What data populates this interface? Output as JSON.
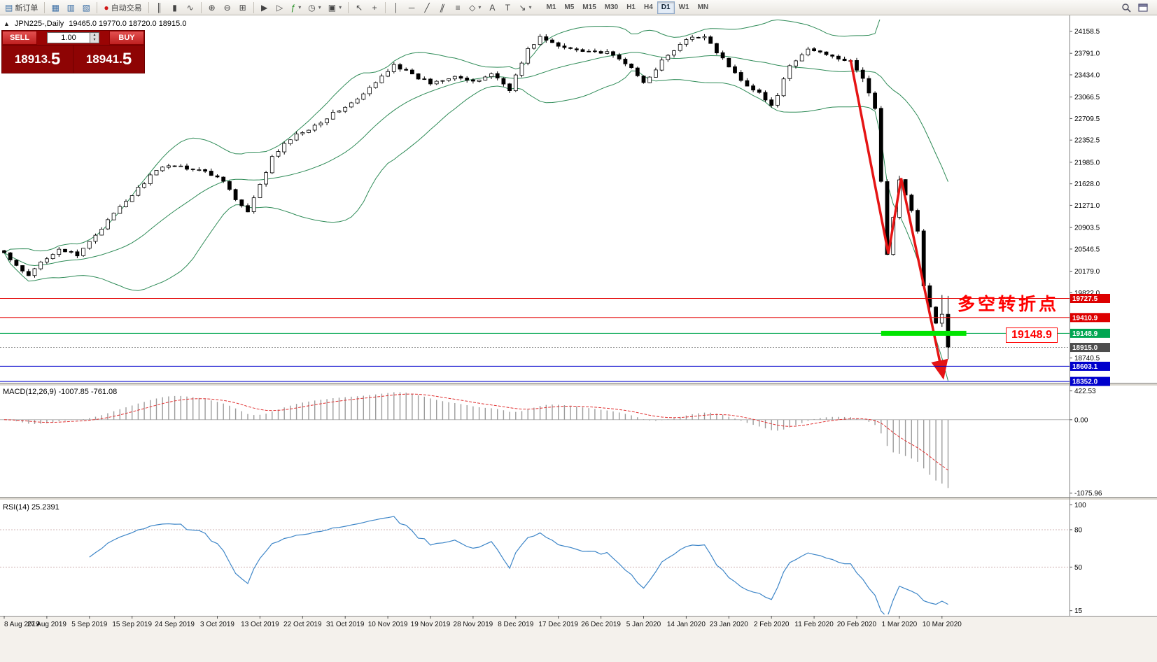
{
  "toolbar": {
    "groups": [
      {
        "name": "order-tools",
        "items": [
          {
            "name": "new-order-button",
            "glyph": "▤",
            "glyph_color": "#3a6ea5",
            "label": "新订单"
          }
        ]
      },
      {
        "name": "window-tools",
        "items": [
          {
            "name": "market-watch-button",
            "glyph": "▦",
            "glyph_color": "#3a6ea5"
          },
          {
            "name": "data-window-button",
            "glyph": "▥",
            "glyph_color": "#3a6ea5"
          },
          {
            "name": "terminal-button",
            "glyph": "▧",
            "glyph_color": "#3a6ea5"
          }
        ]
      },
      {
        "name": "autotrading",
        "items": [
          {
            "name": "auto-trading-button",
            "glyph": "●",
            "glyph_color": "#d01818",
            "label": "自动交易"
          }
        ]
      },
      {
        "name": "chart-type",
        "items": [
          {
            "name": "bar-chart-button",
            "glyph": "║"
          },
          {
            "name": "candlestick-chart-button",
            "glyph": "▮"
          },
          {
            "name": "line-chart-button",
            "glyph": "∿"
          }
        ]
      },
      {
        "name": "zoom",
        "items": [
          {
            "name": "zoom-in-button",
            "glyph": "⊕"
          },
          {
            "name": "zoom-out-button",
            "glyph": "⊖"
          },
          {
            "name": "tile-windows-button",
            "glyph": "⊞"
          }
        ]
      },
      {
        "name": "chart-tools",
        "items": [
          {
            "name": "auto-scroll-button",
            "glyph": "▶"
          },
          {
            "name": "chart-shift-button",
            "glyph": "▷"
          },
          {
            "name": "indicators-button",
            "glyph": "ƒ",
            "glyph_color": "#1a8a1a",
            "caret": true
          },
          {
            "name": "periods-button",
            "glyph": "◷",
            "caret": true
          },
          {
            "name": "templates-button",
            "glyph": "▣",
            "caret": true
          }
        ]
      },
      {
        "name": "pointer",
        "items": [
          {
            "name": "cursor-button",
            "glyph": "↖"
          },
          {
            "name": "crosshair-button",
            "glyph": "+"
          }
        ]
      },
      {
        "name": "draw-objects",
        "items": [
          {
            "name": "vertical-line-button",
            "glyph": "│"
          },
          {
            "name": "horizontal-line-button",
            "glyph": "─"
          },
          {
            "name": "trendline-button",
            "glyph": "╱"
          },
          {
            "name": "equidistant-channel-button",
            "glyph": "∥",
            "skew": true
          },
          {
            "name": "fibonacci-button",
            "glyph": "≡"
          },
          {
            "name": "shapes-button",
            "glyph": "◇",
            "caret": true
          },
          {
            "name": "text-button",
            "glyph": "A"
          },
          {
            "name": "text-label-button",
            "glyph": "T"
          },
          {
            "name": "arrows-button",
            "glyph": "↘",
            "caret": true
          }
        ]
      }
    ],
    "timeframes": [
      {
        "label": "M1"
      },
      {
        "label": "M5"
      },
      {
        "label": "M15"
      },
      {
        "label": "M30"
      },
      {
        "label": "H1"
      },
      {
        "label": "H4"
      },
      {
        "label": "D1",
        "active": true
      },
      {
        "label": "W1"
      },
      {
        "label": "MN"
      }
    ]
  },
  "order_panel": {
    "sell_label": "SELL",
    "buy_label": "BUY",
    "volume": "1.00",
    "spinner_up": "▴",
    "spinner_down": "▾",
    "sell_price_main": "18913.",
    "sell_price_big": "5",
    "buy_price_main": "18941.",
    "buy_price_big": "5"
  },
  "chart": {
    "collapse_icon": "▲",
    "title": "JPN225-,Daily",
    "ohlc_text": "19465.0 19770.0 18720.0 18915.0",
    "annotation": "多空转折点",
    "support_callout": "19148.9"
  },
  "macd_panel": {
    "label": "MACD(12,26,9) -1007.85 -761.08",
    "axis_labels": [
      422.53,
      0,
      -1075.96
    ]
  },
  "rsi_panel": {
    "label": "RSI(14) 25.2391",
    "axis_labels": [
      100,
      80,
      50,
      15
    ],
    "levels": [
      80,
      50
    ]
  },
  "price_axis": {
    "ticks": [
      24158.5,
      23791.0,
      23434.0,
      23066.5,
      22709.5,
      22352.5,
      21985.0,
      21628.0,
      21271.0,
      20903.5,
      20546.5,
      20179.0,
      19822.0,
      18740.5
    ],
    "tags": [
      {
        "value": "19727.5",
        "price": 19727.5,
        "color": "#dd0000"
      },
      {
        "value": "19410.9",
        "price": 19410.9,
        "color": "#dd0000"
      },
      {
        "value": "19148.9",
        "price": 19148.9,
        "color": "#00a651"
      },
      {
        "value": "18915.0",
        "price": 18915.0,
        "color": "#4d4d4d"
      },
      {
        "value": "18603.1",
        "price": 18603.1,
        "color": "#0000cc"
      },
      {
        "value": "18352.0",
        "price": 18352.0,
        "color": "#0000cc"
      }
    ]
  },
  "time_axis": {
    "step": 7,
    "dates": [
      "8 Aug 2019",
      "27 Aug 2019",
      "5 Sep 2019",
      "15 Sep 2019",
      "24 Sep 2019",
      "3 Oct 2019",
      "13 Oct 2019",
      "22 Oct 2019",
      "31 Oct 2019",
      "10 Nov 2019",
      "19 Nov 2019",
      "28 Nov 2019",
      "8 Dec 2019",
      "17 Dec 2019",
      "26 Dec 2019",
      "5 Jan 2020",
      "14 Jan 2020",
      "23 Jan 2020",
      "2 Feb 2020",
      "11 Feb 2020",
      "20 Feb 2020",
      "1 Mar 2020",
      "10 Mar 2020"
    ]
  },
  "chart_data": {
    "type": "candlestick",
    "symbol": "JPN225-",
    "timeframe": "Daily",
    "last_candle": {
      "open": 19465.0,
      "high": 19770.0,
      "low": 18720.0,
      "close": 18915.0
    },
    "num_candles": 156,
    "y_axis_range": [
      18374,
      24350
    ],
    "close_anchors": [
      [
        0,
        20480
      ],
      [
        2,
        20250
      ],
      [
        4,
        20090
      ],
      [
        6,
        20330
      ],
      [
        9,
        20560
      ],
      [
        12,
        20420
      ],
      [
        14,
        20680
      ],
      [
        17,
        21010
      ],
      [
        20,
        21340
      ],
      [
        24,
        21760
      ],
      [
        27,
        21950
      ],
      [
        32,
        21860
      ],
      [
        36,
        21700
      ],
      [
        38,
        21360
      ],
      [
        40,
        21150
      ],
      [
        42,
        21600
      ],
      [
        44,
        22060
      ],
      [
        47,
        22380
      ],
      [
        51,
        22600
      ],
      [
        55,
        22850
      ],
      [
        58,
        23020
      ],
      [
        61,
        23300
      ],
      [
        64,
        23620
      ],
      [
        67,
        23420
      ],
      [
        70,
        23300
      ],
      [
        74,
        23430
      ],
      [
        77,
        23300
      ],
      [
        80,
        23460
      ],
      [
        83,
        23200
      ],
      [
        86,
        23850
      ],
      [
        88,
        24060
      ],
      [
        91,
        23900
      ],
      [
        95,
        23850
      ],
      [
        99,
        23790
      ],
      [
        102,
        23640
      ],
      [
        105,
        23300
      ],
      [
        108,
        23660
      ],
      [
        112,
        24010
      ],
      [
        115,
        24090
      ],
      [
        118,
        23690
      ],
      [
        121,
        23340
      ],
      [
        124,
        23140
      ],
      [
        126,
        22900
      ],
      [
        129,
        23560
      ],
      [
        132,
        23860
      ],
      [
        136,
        23760
      ],
      [
        139,
        23640
      ],
      [
        141,
        23380
      ],
      [
        143,
        22880
      ],
      [
        145,
        20450
      ],
      [
        147,
        21700
      ],
      [
        149,
        21180
      ],
      [
        150,
        20840
      ],
      [
        151,
        19940
      ],
      [
        152,
        19580
      ],
      [
        153,
        19310
      ],
      [
        154,
        19465
      ],
      [
        155,
        18915
      ]
    ],
    "indicators": [
      {
        "name": "Bollinger Bands",
        "period": 20,
        "deviation": 2
      },
      {
        "name": "MACD",
        "fast": 12,
        "slow": 26,
        "signal": 9,
        "value": -1007.85,
        "signal_value": -761.08
      },
      {
        "name": "RSI",
        "period": 14,
        "value": 25.2391
      }
    ],
    "levels": [
      {
        "price": 19727.5,
        "color": "#e51414",
        "style": "solid"
      },
      {
        "price": 19410.9,
        "color": "#e51414",
        "style": "solid"
      },
      {
        "price": 19148.9,
        "color": "#00a651",
        "style": "solid"
      },
      {
        "price": 18915.0,
        "color": "#999999",
        "style": "dotted"
      },
      {
        "price": 18603.1,
        "color": "#0000cc",
        "style": "solid"
      },
      {
        "price": 18352.0,
        "color": "#0000cc",
        "style": "solid"
      }
    ],
    "highlight_segment": {
      "price": 19148.9,
      "x_from_index": 144,
      "x_to_index": 158
    },
    "trend_arrow": [
      [
        139,
        23680
      ],
      [
        145.2,
        20470
      ],
      [
        147.3,
        21720
      ],
      [
        154.2,
        18420
      ]
    ]
  },
  "colors": {
    "bull_candle": "#ffffff",
    "bear_candle": "#000000",
    "candle_outline": "#000000",
    "bollinger": "#2e8b57",
    "macd_histogram": "#9c9c9c",
    "macd_signal": "#e03232",
    "rsi_line": "#3e86c8",
    "rsi_level": "#d0b4b4",
    "level_red": "#e51414",
    "highlight_green": "#00e400",
    "annotation_red": "#ff0000"
  }
}
